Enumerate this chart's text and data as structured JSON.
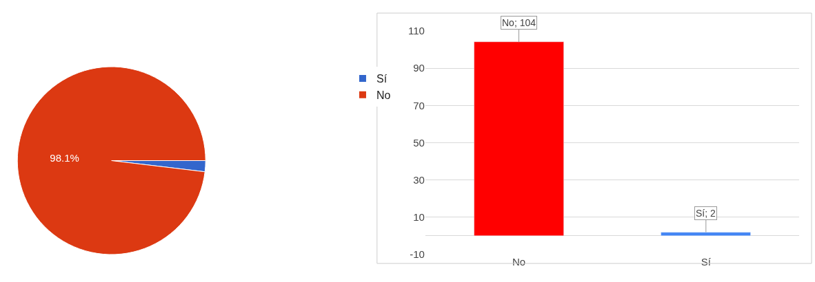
{
  "chart_data": [
    {
      "type": "pie",
      "categories": [
        "Sí",
        "No"
      ],
      "values": [
        1.9,
        98.1
      ],
      "colors": [
        "#3366cc",
        "#dc3912"
      ],
      "value_labels": [
        null,
        "98.1%"
      ],
      "legend": "right"
    },
    {
      "type": "bar",
      "categories": [
        "No",
        "Sí"
      ],
      "values": [
        104,
        2
      ],
      "colors": [
        "#ff0000",
        "#4285f4"
      ],
      "value_labels": [
        "No; 104",
        "Sí; 2"
      ],
      "ylim": [
        -10,
        110
      ],
      "yticks": [
        -10,
        {
          "value": 0,
          "label": null
        },
        10,
        30,
        50,
        70,
        90,
        110
      ],
      "grid": "y"
    }
  ]
}
